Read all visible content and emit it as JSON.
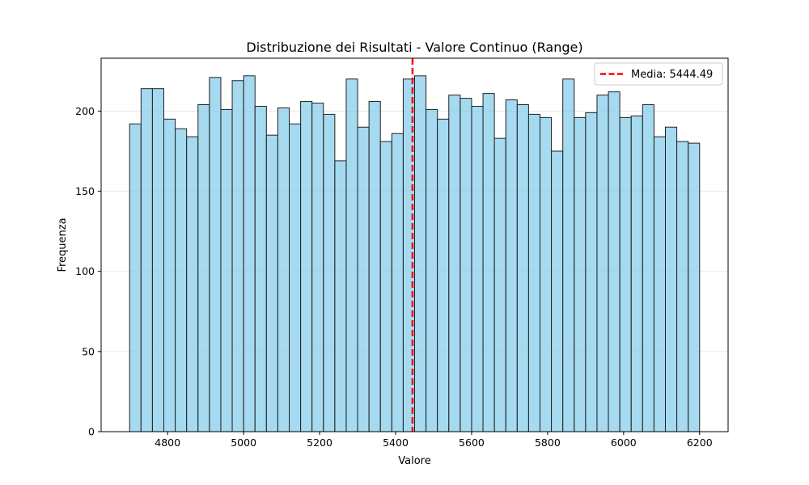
{
  "chart_data": {
    "type": "bar",
    "title": "Distribuzione dei Risultati - Valore Continuo (Range)",
    "xlabel": "Valore",
    "ylabel": "Frequenza",
    "xlim": [
      4625,
      6275
    ],
    "ylim": [
      0,
      233
    ],
    "xticks": [
      4800,
      5000,
      5200,
      5400,
      5600,
      5800,
      6000,
      6200
    ],
    "yticks": [
      0,
      50,
      100,
      150,
      200
    ],
    "grid": "horizontal",
    "bin_start": 4700,
    "bin_end": 6200,
    "bin_count": 50,
    "values": [
      192,
      214,
      214,
      195,
      189,
      184,
      204,
      221,
      201,
      219,
      222,
      203,
      185,
      202,
      192,
      206,
      205,
      198,
      169,
      220,
      190,
      206,
      181,
      186,
      220,
      222,
      201,
      195,
      210,
      208,
      203,
      211,
      183,
      207,
      204,
      198,
      196,
      175,
      220,
      196,
      199,
      210,
      212,
      196,
      197,
      204,
      184,
      190,
      181,
      180
    ],
    "bar_color": "#87CEEB",
    "mean": {
      "value": 5444.49,
      "label": "Media: 5444.49",
      "color": "#FF0000"
    },
    "legend": {
      "position": "top-right",
      "entries": [
        "Media: 5444.49"
      ]
    }
  }
}
